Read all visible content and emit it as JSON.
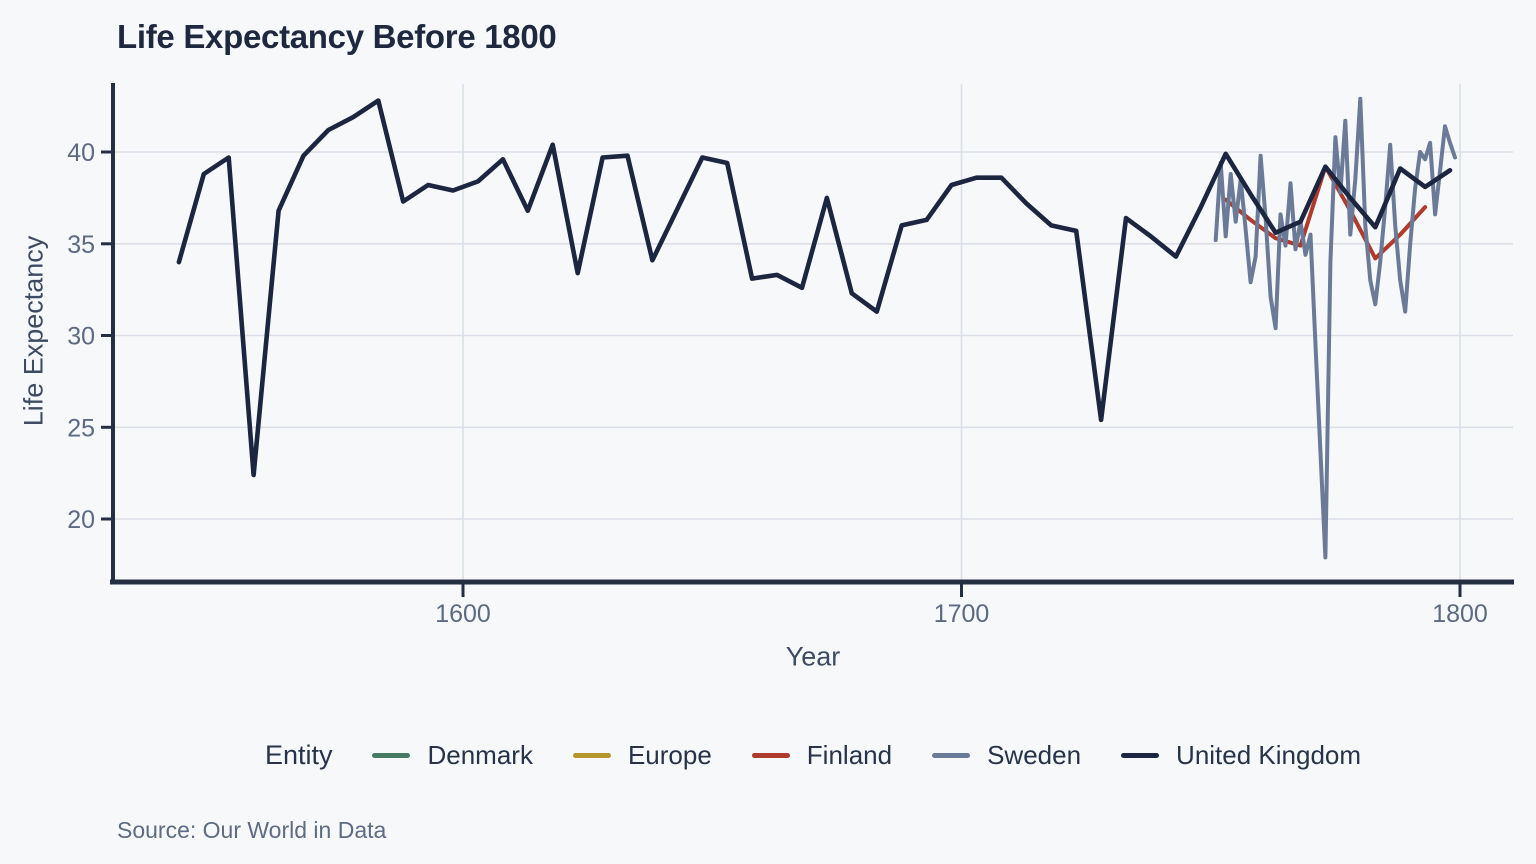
{
  "title": "Life Expectancy Before 1800",
  "axes": {
    "x_label": "Year",
    "y_label": "Life Expectancy",
    "x_ticks": [
      "1600",
      "1700",
      "1800"
    ],
    "y_ticks": [
      "20",
      "25",
      "30",
      "35",
      "40"
    ]
  },
  "legend": {
    "title": "Entity",
    "items": [
      {
        "label": "Denmark",
        "color": "#467a63"
      },
      {
        "label": "Europe",
        "color": "#b6952d"
      },
      {
        "label": "Finland",
        "color": "#b03a2b"
      },
      {
        "label": "Sweden",
        "color": "#6b7a97"
      },
      {
        "label": "United Kingdom",
        "color": "#1c2640"
      }
    ]
  },
  "source": "Source: Our World in Data",
  "colors": {
    "background": "#f7f8fa",
    "axis": "#252f44",
    "gridline": "#dbdfe7",
    "tick_text": "#5c6a82",
    "title_text": "#1e2940"
  },
  "chart_data": {
    "type": "line",
    "title": "Life Expectancy Before 1800",
    "xlabel": "Year",
    "ylabel": "Life Expectancy",
    "xlim": [
      1530,
      1810
    ],
    "ylim": [
      16.5,
      43.5
    ],
    "x_tick_values": [
      1600,
      1700,
      1800
    ],
    "y_tick_values": [
      20,
      25,
      30,
      35,
      40
    ],
    "grid": true,
    "legend_position": "bottom",
    "series": [
      {
        "name": "Denmark",
        "color": "#467a63",
        "points": []
      },
      {
        "name": "Europe",
        "color": "#b6952d",
        "points": []
      },
      {
        "name": "Finland",
        "color": "#b03a2b",
        "points": [
          [
            1753,
            37.4
          ],
          [
            1758,
            36.3
          ],
          [
            1763,
            35.3
          ],
          [
            1768,
            34.9
          ],
          [
            1773,
            39.2
          ],
          [
            1778,
            36.8
          ],
          [
            1783,
            34.2
          ],
          [
            1788,
            35.5
          ],
          [
            1793,
            37.0
          ]
        ]
      },
      {
        "name": "Sweden",
        "color": "#6b7a97",
        "points": [
          [
            1751,
            35.2
          ],
          [
            1752,
            39.4
          ],
          [
            1753,
            35.4
          ],
          [
            1754,
            38.8
          ],
          [
            1755,
            36.2
          ],
          [
            1756,
            38.5
          ],
          [
            1757,
            35.8
          ],
          [
            1758,
            32.9
          ],
          [
            1759,
            34.3
          ],
          [
            1760,
            39.8
          ],
          [
            1761,
            36.4
          ],
          [
            1762,
            32.1
          ],
          [
            1763,
            30.4
          ],
          [
            1764,
            36.6
          ],
          [
            1765,
            34.9
          ],
          [
            1766,
            38.3
          ],
          [
            1767,
            34.7
          ],
          [
            1768,
            36.2
          ],
          [
            1769,
            34.4
          ],
          [
            1770,
            35.5
          ],
          [
            1771,
            29.6
          ],
          [
            1772,
            23.7
          ],
          [
            1773,
            17.9
          ],
          [
            1774,
            34.0
          ],
          [
            1775,
            40.8
          ],
          [
            1776,
            37.8
          ],
          [
            1777,
            41.7
          ],
          [
            1778,
            35.5
          ],
          [
            1779,
            38.5
          ],
          [
            1780,
            42.9
          ],
          [
            1781,
            36.0
          ],
          [
            1782,
            33.0
          ],
          [
            1783,
            31.7
          ],
          [
            1784,
            34.0
          ],
          [
            1785,
            37.0
          ],
          [
            1786,
            40.4
          ],
          [
            1787,
            36.0
          ],
          [
            1788,
            33.0
          ],
          [
            1789,
            31.3
          ],
          [
            1790,
            35.0
          ],
          [
            1791,
            38.0
          ],
          [
            1792,
            40.0
          ],
          [
            1793,
            39.6
          ],
          [
            1794,
            40.5
          ],
          [
            1795,
            36.6
          ],
          [
            1796,
            39.0
          ],
          [
            1797,
            41.4
          ],
          [
            1798,
            40.5
          ],
          [
            1799,
            39.7
          ]
        ]
      },
      {
        "name": "United Kingdom",
        "color": "#1c2640",
        "points": [
          [
            1543,
            34.0
          ],
          [
            1548,
            38.8
          ],
          [
            1553,
            39.7
          ],
          [
            1558,
            22.4
          ],
          [
            1563,
            36.8
          ],
          [
            1568,
            39.8
          ],
          [
            1573,
            41.2
          ],
          [
            1578,
            41.9
          ],
          [
            1583,
            42.8
          ],
          [
            1588,
            37.3
          ],
          [
            1593,
            38.2
          ],
          [
            1598,
            37.9
          ],
          [
            1603,
            38.4
          ],
          [
            1608,
            39.6
          ],
          [
            1613,
            36.8
          ],
          [
            1618,
            40.4
          ],
          [
            1623,
            33.4
          ],
          [
            1628,
            39.7
          ],
          [
            1633,
            39.8
          ],
          [
            1638,
            34.1
          ],
          [
            1643,
            36.9
          ],
          [
            1648,
            39.7
          ],
          [
            1653,
            39.4
          ],
          [
            1658,
            33.1
          ],
          [
            1663,
            33.3
          ],
          [
            1668,
            32.6
          ],
          [
            1673,
            37.5
          ],
          [
            1678,
            32.3
          ],
          [
            1683,
            31.3
          ],
          [
            1688,
            36.0
          ],
          [
            1693,
            36.3
          ],
          [
            1698,
            38.2
          ],
          [
            1703,
            38.6
          ],
          [
            1708,
            38.6
          ],
          [
            1713,
            37.2
          ],
          [
            1718,
            36.0
          ],
          [
            1723,
            35.7
          ],
          [
            1728,
            25.4
          ],
          [
            1733,
            36.4
          ],
          [
            1738,
            35.4
          ],
          [
            1743,
            34.3
          ],
          [
            1748,
            37.0
          ],
          [
            1753,
            39.9
          ],
          [
            1758,
            37.7
          ],
          [
            1763,
            35.6
          ],
          [
            1768,
            36.2
          ],
          [
            1773,
            39.2
          ],
          [
            1778,
            37.5
          ],
          [
            1783,
            35.9
          ],
          [
            1788,
            39.1
          ],
          [
            1793,
            38.1
          ],
          [
            1798,
            39.0
          ]
        ]
      }
    ]
  }
}
